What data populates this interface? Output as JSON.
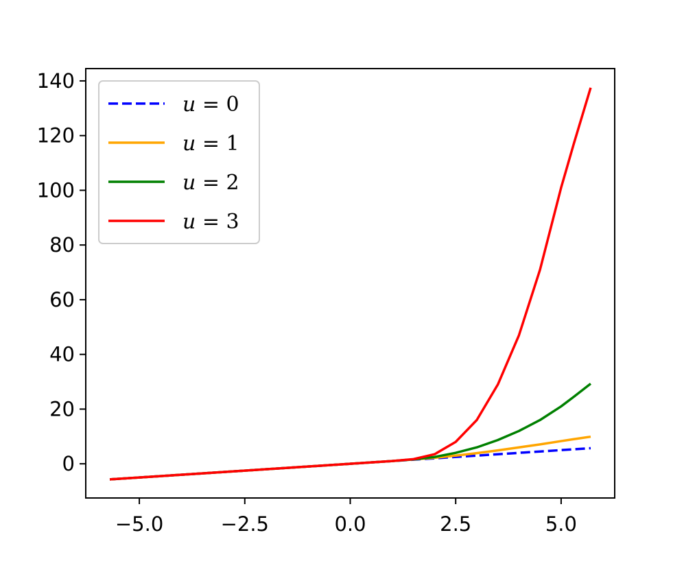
{
  "chart_data": {
    "type": "line",
    "title": "",
    "xlabel": "",
    "ylabel": "",
    "xlim": [
      -6.27,
      6.27
    ],
    "ylim": [
      -12.5,
      144.5
    ],
    "x_ticks": [
      -5.0,
      -2.5,
      0.0,
      2.5,
      5.0
    ],
    "x_tick_labels": [
      "−5.0",
      "−2.5",
      "0.0",
      "2.5",
      "5.0"
    ],
    "y_ticks": [
      0,
      20,
      40,
      60,
      80,
      100,
      120,
      140
    ],
    "y_tick_labels": [
      "0",
      "20",
      "40",
      "60",
      "80",
      "100",
      "120",
      "140"
    ],
    "grid": false,
    "legend_position": "top-left",
    "x": [
      -5.7,
      -5.0,
      -4.0,
      -3.0,
      -2.0,
      -1.0,
      0.0,
      0.5,
      1.0,
      1.5,
      2.0,
      2.5,
      3.0,
      3.5,
      4.0,
      4.5,
      5.0,
      5.3,
      5.7
    ],
    "series": [
      {
        "name": "u = 0",
        "legend_var": "u",
        "legend_value": "0",
        "color": "#0000ff",
        "dashed": true,
        "values": [
          -5.7,
          -5.0,
          -4.0,
          -3.0,
          -2.0,
          -1.0,
          0.0,
          0.5,
          1.0,
          1.5,
          2.0,
          2.5,
          3.0,
          3.5,
          4.0,
          4.5,
          5.0,
          5.3,
          5.7
        ]
      },
      {
        "name": "u = 1",
        "legend_var": "u",
        "legend_value": "1",
        "color": "#ffa500",
        "dashed": false,
        "values": [
          -5.7,
          -5.0,
          -4.0,
          -3.0,
          -2.0,
          -1.0,
          0.0,
          0.5,
          1.0,
          1.6,
          2.2,
          3.0,
          3.9,
          4.9,
          6.0,
          7.1,
          8.3,
          9.0,
          9.9
        ]
      },
      {
        "name": "u = 2",
        "legend_var": "u",
        "legend_value": "2",
        "color": "#008000",
        "dashed": false,
        "values": [
          -5.7,
          -5.0,
          -4.0,
          -3.0,
          -2.0,
          -1.0,
          0.0,
          0.5,
          1.0,
          1.6,
          2.5,
          4.0,
          6.0,
          8.7,
          12.0,
          16.0,
          21.0,
          24.5,
          29.3
        ]
      },
      {
        "name": "u = 3",
        "legend_var": "u",
        "legend_value": "3",
        "color": "#ff0000",
        "dashed": false,
        "values": [
          -5.7,
          -5.0,
          -4.0,
          -3.0,
          -2.0,
          -1.0,
          0.0,
          0.5,
          1.0,
          1.7,
          3.5,
          8.0,
          16.0,
          29.0,
          47.0,
          71.0,
          101.0,
          117.0,
          137.5
        ]
      }
    ]
  }
}
